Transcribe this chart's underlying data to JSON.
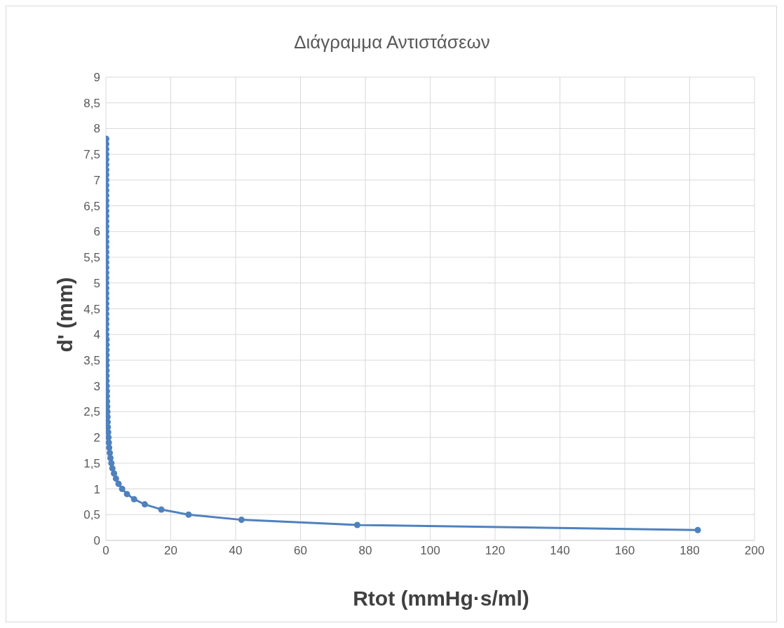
{
  "chart_data": {
    "type": "line",
    "title": "Διάγραμμα Αντιστάσεων",
    "xlabel": "Rtot (mmHg·s/ml)",
    "ylabel": "d' (mm)",
    "x": [
      182.5,
      77.5,
      41.8,
      25.5,
      17.1,
      12,
      8.7,
      6.5,
      5,
      3.9,
      3.1,
      2.5,
      2,
      1.7,
      1.4,
      1.2,
      1,
      0.9,
      0.8,
      0.7,
      0.6,
      0.55,
      0.5,
      0.45,
      0.4,
      0.35,
      0.3,
      0.3,
      0.25,
      0.2,
      0.2,
      0.2,
      0.2,
      0.2,
      0.2,
      0.2,
      0.2,
      0.2,
      0.1,
      0.1,
      0.1,
      0.1,
      0.1,
      0.1,
      0.1,
      0.1,
      0.1,
      0.1,
      0.1,
      0.1,
      0.1,
      0.1,
      0.1,
      0.1,
      0.1,
      0.1,
      0.1,
      0.1,
      0.1,
      0.1,
      0.1,
      0.1,
      0.1,
      0.1,
      0.1,
      0.1,
      0.1,
      0.1,
      0.1,
      0.1,
      0.1,
      0.1,
      0.1,
      0.1,
      0.1,
      0.1,
      0.1
    ],
    "series": [
      {
        "color": "#4f81bd",
        "values": [
          0.2,
          0.3,
          0.4,
          0.5,
          0.6,
          0.7,
          0.8,
          0.9,
          1,
          1.1,
          1.2,
          1.3,
          1.4,
          1.5,
          1.6,
          1.7,
          1.8,
          1.9,
          2,
          2.1,
          2.2,
          2.3,
          2.4,
          2.5,
          2.6,
          2.7,
          2.8,
          2.9,
          3,
          3.1,
          3.2,
          3.3,
          3.4,
          3.5,
          3.6,
          3.7,
          3.8,
          3.9,
          4,
          4.1,
          4.2,
          4.3,
          4.4,
          4.5,
          4.6,
          4.7,
          4.8,
          4.9,
          5,
          5.1,
          5.2,
          5.3,
          5.4,
          5.5,
          5.6,
          5.7,
          5.8,
          5.9,
          6,
          6.1,
          6.2,
          6.3,
          6.4,
          6.5,
          6.6,
          6.7,
          6.8,
          6.9,
          7,
          7.1,
          7.2,
          7.3,
          7.4,
          7.5,
          7.6,
          7.7,
          7.8
        ]
      }
    ],
    "xlim": [
      0,
      200
    ],
    "xticks": [
      0,
      20,
      40,
      60,
      80,
      100,
      120,
      140,
      160,
      180,
      200
    ],
    "ylim": [
      0,
      9
    ],
    "yticks": [
      0,
      {
        "value": 0.5,
        "label": "0,5"
      },
      1,
      {
        "value": 1.5,
        "label": "1,5"
      },
      2,
      {
        "value": 2.5,
        "label": "2,5"
      },
      3,
      {
        "value": 3.5,
        "label": "3,5"
      },
      4,
      {
        "value": 4.5,
        "label": "4,5"
      },
      5,
      {
        "value": 5.5,
        "label": "5,5"
      },
      6,
      {
        "value": 6.5,
        "label": "6,5"
      },
      7,
      {
        "value": 7.5,
        "label": "7,5"
      },
      8,
      {
        "value": 8.5,
        "label": "8,5"
      },
      9
    ],
    "grid": true,
    "legend": false,
    "marker": "circle",
    "line_style": "solid"
  }
}
